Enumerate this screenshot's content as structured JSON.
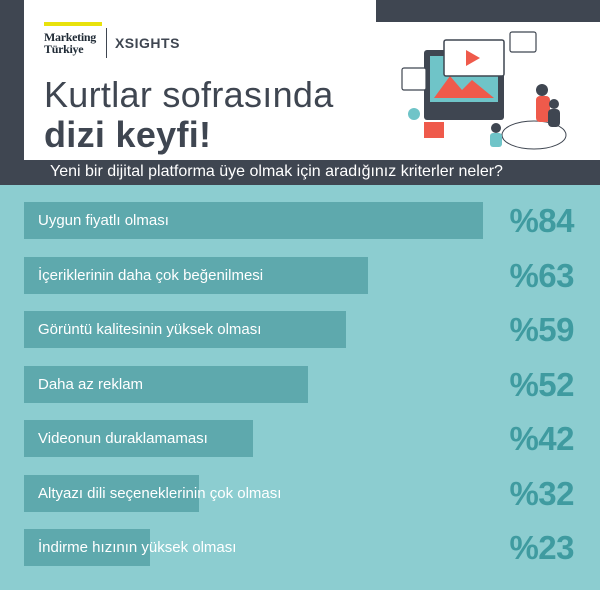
{
  "brand": {
    "marketing_line1": "Marketing",
    "marketing_line2": "Türkiye",
    "xsights": "XSIGHTS"
  },
  "title_line1": "Kurtlar sofrasında",
  "title_line2": "dizi keyfi!",
  "chart_data": {
    "type": "bar",
    "orientation": "horizontal",
    "title": "Yeni bir dijital platforma üye olmak için aradığınız kriterler neler?",
    "categories": [
      "Uygun fiyatlı olması",
      "İçeriklerinin daha çok beğenilmesi",
      "Görüntü kalitesinin yüksek olması",
      "Daha az reklam",
      "Videonun duraklamaması",
      "Altyazı dili seçeneklerinin çok olması",
      "İndirme hızının yüksek olması"
    ],
    "values": [
      84,
      63,
      59,
      52,
      42,
      32,
      23
    ],
    "value_labels": [
      "%84",
      "%63",
      "%59",
      "%52",
      "%42",
      "%32",
      "%23"
    ],
    "xlim": [
      0,
      100
    ],
    "colors": {
      "bar": "#5ea9ad",
      "value": "#3f9ba0",
      "background": "#8ccdd0"
    }
  }
}
